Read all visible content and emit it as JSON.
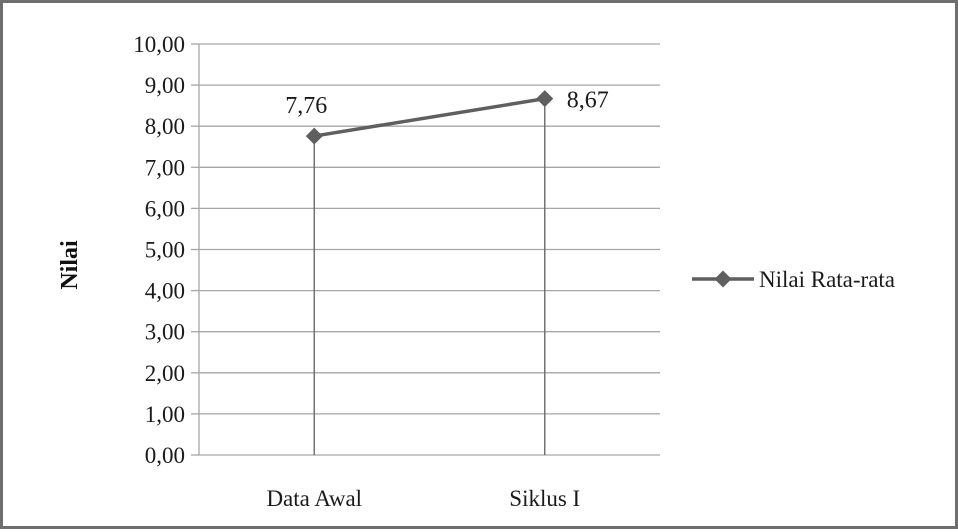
{
  "chart_data": {
    "type": "line",
    "categories": [
      "Data Awal",
      "Siklus I"
    ],
    "series": [
      {
        "name": "Nilai Rata-rata",
        "values": [
          7.76,
          8.67
        ],
        "labels": [
          "7,76",
          "8,67"
        ]
      }
    ],
    "ylabel": "Nilai",
    "xlabel": "",
    "ylim": [
      0,
      10
    ],
    "yticks": [
      "0,00",
      "1,00",
      "2,00",
      "3,00",
      "4,00",
      "5,00",
      "6,00",
      "7,00",
      "8,00",
      "9,00",
      "10,00"
    ],
    "grid": true,
    "drop_lines": true,
    "legend_position": "right",
    "colors": {
      "series": "#5f5f5f",
      "grid": "#a6a6a6",
      "frame": "#6e6e6e"
    }
  }
}
